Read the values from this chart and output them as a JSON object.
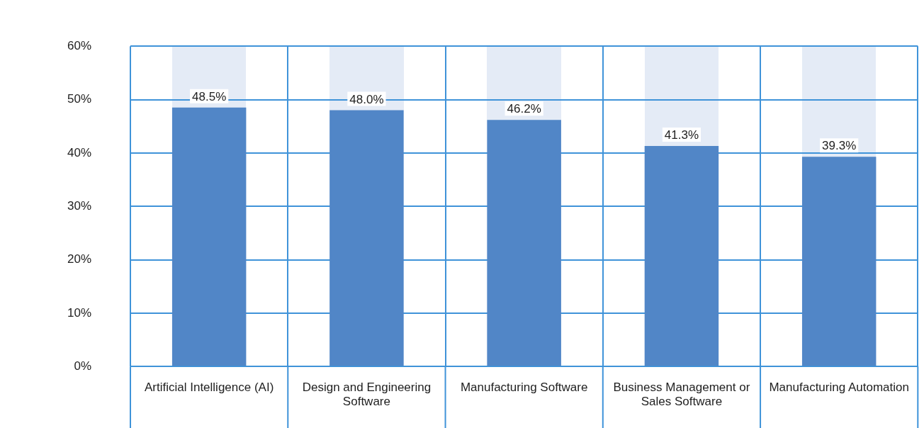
{
  "chart_data": {
    "type": "bar",
    "categories": [
      "Artificial Intelligence (AI)",
      "Design and Engineering Software",
      "Manufacturing Software",
      "Business Management or Sales Software",
      "Manufacturing Automation"
    ],
    "values": [
      48.5,
      48.0,
      46.2,
      41.3,
      39.3
    ],
    "color": "#5186c7",
    "value_labels": [
      "48.5%",
      "48.0%",
      "46.2%",
      "41.3%",
      "39.3%"
    ],
    "ylim": [
      0,
      60
    ],
    "yticks": [
      {
        "value": 0,
        "label": "0%"
      },
      {
        "value": 10,
        "label": "10%"
      },
      {
        "value": 20,
        "label": "20%"
      },
      {
        "value": 30,
        "label": "30%"
      },
      {
        "value": 40,
        "label": "40%"
      },
      {
        "value": 50,
        "label": "50%"
      },
      {
        "value": 60,
        "label": "60%"
      }
    ],
    "grid": true,
    "legend": false
  }
}
